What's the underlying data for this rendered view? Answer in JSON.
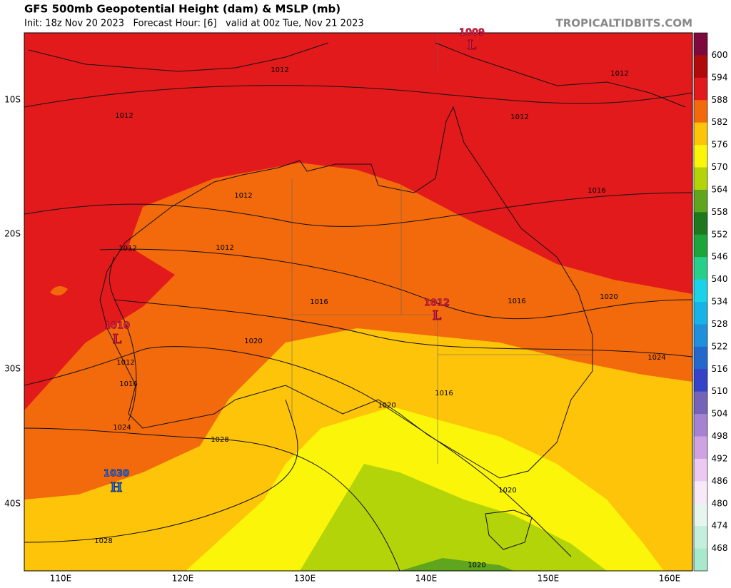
{
  "header": {
    "title": "GFS 500mb Geopotential Height (dam) & MSLP (mb)",
    "subtitle": "Init: 18z Nov 20 2023   Forecast Hour: [6]   valid at 00z Tue, Nov 21 2023",
    "credit": "TROPICALTIDBITS.COM"
  },
  "lon_labels": [
    "110E",
    "120E",
    "130E",
    "140E",
    "150E",
    "160E"
  ],
  "lat_labels": [
    "10S",
    "20S",
    "30S",
    "40S"
  ],
  "colorbar": {
    "labels": [
      600,
      594,
      588,
      582,
      576,
      570,
      564,
      558,
      552,
      546,
      540,
      534,
      528,
      522,
      516,
      510,
      504,
      498,
      492,
      486,
      480,
      474,
      468
    ],
    "colors": [
      "#7d0a3c",
      "#b00b0b",
      "#e31a1c",
      "#f26a0c",
      "#fdc409",
      "#fbf50a",
      "#b4d40a",
      "#5fa51e",
      "#1e781e",
      "#1da43a",
      "#28cf8a",
      "#1ad3e8",
      "#17b3e6",
      "#2190da",
      "#2468cc",
      "#3443c8",
      "#7463b8",
      "#a583d2",
      "#cfa2e2",
      "#ecc9f0",
      "#f8e9f8",
      "#e6f6ee",
      "#c4efdc",
      "#a8e8cc"
    ]
  },
  "isobar_labels": [
    "1012",
    "1012",
    "1012",
    "1012",
    "1016",
    "1012",
    "1012",
    "1012",
    "1016",
    "1016",
    "1020",
    "1020",
    "1024",
    "1012",
    "1016",
    "1016",
    "1020",
    "1024",
    "1028",
    "1020",
    "1028",
    "1020"
  ],
  "pressure_centers": [
    {
      "label": "L",
      "value": "1009"
    },
    {
      "label": "L",
      "value": "1010"
    },
    {
      "label": "L",
      "value": "1012"
    },
    {
      "label": "H",
      "value": "1030"
    }
  ]
}
